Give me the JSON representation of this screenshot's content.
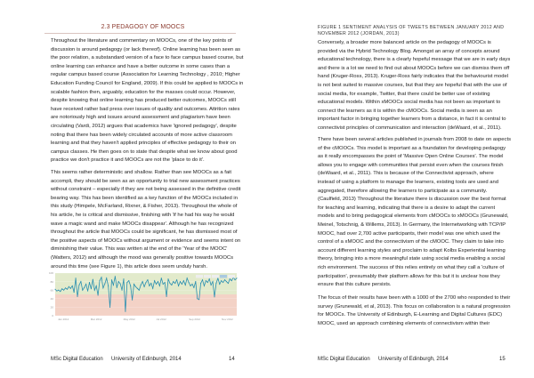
{
  "left_page": {
    "heading": "2.3 PEDAGOGY OF MOOCS",
    "paragraphs": [
      [
        "Throughout the literature and commentary on MOOCs, one of the key points of",
        "discussion is around pedagogy (or lack thereof). Online learning has been seen as",
        "the poor relation, a substandard version of a face to face campus based course, but",
        "online learning can enhance and have a better outcome in some cases than a",
        "regular campus based course (Association for Learning Technology , 2010; Higher",
        "Education Funding Council for England, 2009).  If this could be applied to MOOCs in",
        "scalable fashion then, arguably, education for the masses could occur.  However,",
        "despite knowing that online learning has produced better outcomes, MOOCs still",
        "have received rather bad press over issues of quality and outcomes.  Attrition rates",
        "are notoriously high and issues around assessment and plagiarism have been",
        "circulating (Vardi, 2012) argues that academics have 'ignored pedagogy', despite",
        "noting that there has been widely circulated accounts of more active classroom",
        "learning and that they haven't applied principles of effective pedagogy to their on",
        "campus classes.  He then goes on to state that despite what we know about good",
        "practice we don't practice it and MOOCs are not the 'place to do it'."
      ],
      [
        "This seems rather deterministic and shallow.  Rather than see MOOCs as a fait",
        "accompli, they should be seen as an opportunity to trial new assessment practices",
        "without constraint – especially if they are not being assessed in the definitive credit",
        "bearing way.  This has been identified as a key function of the MOOCs included in",
        "this study (Himpele, McFarland, Rixner, & Fisher, 2013).  Throughout the whole of",
        "his article, he is critical and dismissive, finishing with 'if he had his way he would",
        "wave a magic wand and make MOOCs disappear'.   Although he has recognized",
        "throughout the article that MOOCs could be significant, he has dismissed most of",
        "the positive aspects of MOOCs without argument or evidence and seems intent on",
        "diminishing their value.  This was written at the end of the 'Year of the MOOC'",
        "(Watters, 2012) and although the mood was generally positive towards MOOCs",
        "around this time (see Figure 1), this article does seem unduly harsh."
      ]
    ],
    "footer": {
      "left": "MSc Digital Education",
      "center": "University of Edinburgh, 2014",
      "page": "14"
    }
  },
  "right_page": {
    "caption": [
      "FIGURE 1 SENTIMENT ANALYSIS OF TWEETS BETWEEN JANUARY 2012 AND",
      "NOVEMBER 2012 (JORDAN, 2013)"
    ],
    "paragraphs": [
      [
        "Conversely, a broader more balanced article on the pedagogy of MOOCs is",
        "provided via the Hybrid Technology Blog. Amongst an array of concepts around",
        "educational technology, there is a clearly hopeful message that we are in early days",
        "and there is a lot we need to find out about MOOCs before we can dismiss them off",
        "hand (Kruger-Ross, 2013).  Kruger-Ross fairly indicates that the behaviourist model",
        "is not best suited to massive courses, but that they are hopeful that with the use of",
        "social media, for example, Twitter, that there could be better use of existing",
        "educational models.  Within xMOOCs social media has not been as important to",
        "connect the learners as it is within the cMOOCs.  Social media is seen as an",
        "important factor in bringing together learners from a distance, in fact it is central to",
        "connectivist principles of communication and interaction (deWaard, et al., 2011)."
      ],
      [
        "There have been several articles published in journals from 2008 to date on aspects",
        "of the cMOOCs.  This model is important as a foundation for developing pedagogy",
        "as it really encompasses the point of 'Massive Open Online Courses'.  The model",
        "allows you to engage with communities that persist even when the courses finish",
        "(deWaard, et al., 2011). This is because of the Connectivist approach, where",
        "instead of using a platform to manage the learners, existing tools are used and",
        "aggregated, therefore allowing the learners to participate as a community.",
        "(Caulfield, 2013) Throughout the literature there is discussion over the best format",
        "for teaching and learning, indicating that there is a desire to adapt the current",
        "models and to bring pedagogical elements from cMOOCs to xMOOCs (Grunewald,",
        "Meinel, Totschnig, & Willems, 2013). In Germany, the Internetworking with TCP/IP",
        "MOOC, had over 2,700 active participants, their model was one which used the",
        "control of a xMOOC and the connectivism of the cMOOC.  They claim to take into",
        "account different learning styles and proclaim to adapt Kolbs Experiential learning",
        "theory, bringing into a more meaningful state using social media enabling a social",
        "rich environment.  The success of this relies entirely on what they call a 'culture of",
        "participation', presumably their platform allows for this but it is unclear how they",
        "ensure that this culture persists."
      ],
      [
        "The focus of their results have been with a 1000 of the 2700 who responded to their",
        "survey (Grunewald, et al, 2013). This focus on collaboration is a natural progression",
        "for MOOCs.  The University of Edinburgh, E-Learning and Digital Cultures (EDC)",
        "MOOC, used an approach combining elements of connectivism within their"
      ]
    ],
    "footer": {
      "left": "MSc Digital Education",
      "center": "University of Edinburgh, 2014",
      "page": "15"
    }
  },
  "chart_data": {
    "type": "line",
    "ylim": [
      0,
      100
    ],
    "yticks": [
      "0",
      "20",
      "40",
      "60",
      "80",
      "100"
    ],
    "xticks": [
      "Jan 2012",
      "Mar 2012",
      "May 2012",
      "Jul 2012",
      "Sep 2012",
      "Nov 2012"
    ],
    "bands": [
      {
        "from": 50,
        "to": 100,
        "color": "#e2eacb"
      },
      {
        "from": 0,
        "to": 50,
        "color": "#f3d2c6"
      }
    ],
    "line_color": "#2a8fb0",
    "grid": true,
    "values": [
      62,
      58,
      60,
      57,
      63,
      60,
      65,
      62,
      68,
      64,
      70,
      55,
      88,
      45,
      72,
      80,
      60,
      66,
      74,
      58,
      78,
      63,
      85,
      60,
      70,
      48,
      82,
      90,
      65,
      75,
      88,
      70,
      20,
      84,
      72,
      92,
      66,
      80,
      75,
      60,
      86,
      10,
      78,
      82,
      70,
      37,
      74,
      68,
      64,
      60,
      72,
      80,
      68,
      78,
      84,
      70,
      76,
      64,
      82,
      74,
      80,
      70,
      88,
      74,
      78,
      45,
      86,
      76,
      72,
      80,
      76,
      84,
      70,
      80,
      74,
      82,
      72,
      88,
      78,
      70,
      74,
      66,
      80,
      40,
      38,
      76,
      84,
      70,
      82,
      78,
      86,
      72,
      80,
      44,
      76,
      88,
      74,
      82,
      78,
      84,
      80,
      76,
      86,
      82,
      90,
      84,
      88
    ]
  }
}
